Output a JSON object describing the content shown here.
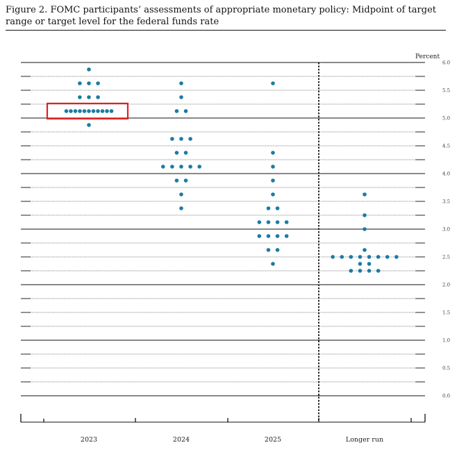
{
  "figure": {
    "title": "Figure 2.  FOMC participants’ assessments of appropriate monetary policy:  Midpoint of target range or target level for the federal funds rate"
  },
  "chart_data": {
    "type": "scatter",
    "title": "Figure 2.  FOMC participants’ assessments of appropriate monetary policy:  Midpoint of target range or target level for the federal funds rate",
    "ylabel": "Percent",
    "xlabel": "",
    "categories": [
      "2023",
      "2024",
      "2025",
      "Longer run"
    ],
    "ylim": [
      0,
      6.0
    ],
    "yticks": [
      "6.0",
      "5.5",
      "5.0",
      "4.5",
      "4.0",
      "3.5",
      "3.0",
      "2.5",
      "2.0",
      "1.5",
      "1.0",
      "0.5",
      "0.0"
    ],
    "grid": true,
    "dot_color": "#1b7ba3",
    "highlight_color": "#e02020",
    "series": [
      {
        "category": "2023",
        "points": [
          {
            "y": 5.875,
            "count": 1
          },
          {
            "y": 5.625,
            "count": 3
          },
          {
            "y": 5.375,
            "count": 3
          },
          {
            "y": 5.125,
            "count": 11
          },
          {
            "y": 4.875,
            "count": 1
          }
        ]
      },
      {
        "category": "2024",
        "points": [
          {
            "y": 5.625,
            "count": 1
          },
          {
            "y": 5.375,
            "count": 1
          },
          {
            "y": 5.125,
            "count": 2
          },
          {
            "y": 4.625,
            "count": 3
          },
          {
            "y": 4.375,
            "count": 2
          },
          {
            "y": 4.125,
            "count": 5
          },
          {
            "y": 3.875,
            "count": 2
          },
          {
            "y": 3.625,
            "count": 1
          },
          {
            "y": 3.375,
            "count": 1
          }
        ]
      },
      {
        "category": "2025",
        "points": [
          {
            "y": 5.625,
            "count": 1
          },
          {
            "y": 4.375,
            "count": 1
          },
          {
            "y": 4.125,
            "count": 1
          },
          {
            "y": 3.875,
            "count": 1
          },
          {
            "y": 3.625,
            "count": 1
          },
          {
            "y": 3.375,
            "count": 2
          },
          {
            "y": 3.125,
            "count": 4
          },
          {
            "y": 2.875,
            "count": 4
          },
          {
            "y": 2.625,
            "count": 2
          },
          {
            "y": 2.375,
            "count": 1
          }
        ]
      },
      {
        "category": "Longer run",
        "points": [
          {
            "y": 3.625,
            "count": 1
          },
          {
            "y": 3.25,
            "count": 1
          },
          {
            "y": 3.0,
            "count": 1
          },
          {
            "y": 2.625,
            "count": 1
          },
          {
            "y": 2.5,
            "count": 8
          },
          {
            "y": 2.375,
            "count": 2
          },
          {
            "y": 2.25,
            "count": 4
          }
        ]
      }
    ],
    "highlight": {
      "category": "2023",
      "y": 5.125
    },
    "separator_after": "2025"
  }
}
